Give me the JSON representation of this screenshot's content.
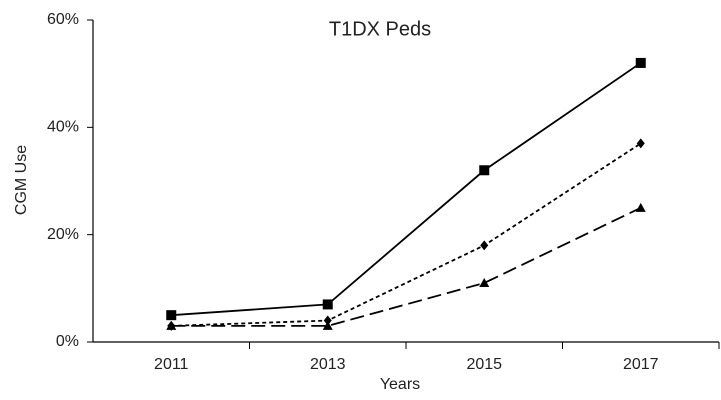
{
  "chart_data": {
    "type": "line",
    "title": "T1DX Peds",
    "xlabel": "Years",
    "ylabel": "CGM Use",
    "categories": [
      "2011",
      "2013",
      "2015",
      "2017"
    ],
    "series": [
      {
        "color": "#000000",
        "marker": "square",
        "dash": "solid",
        "values": [
          5,
          7,
          32,
          52
        ]
      },
      {
        "color": "#000000",
        "marker": "diamond",
        "dash": "short",
        "values": [
          3,
          4,
          18,
          37
        ]
      },
      {
        "color": "#000000",
        "marker": "triangle",
        "dash": "long",
        "values": [
          3,
          3,
          11,
          25
        ]
      }
    ],
    "ylim": [
      0,
      60
    ],
    "yticks": [
      {
        "value": 0,
        "label": "0%"
      },
      {
        "value": 20,
        "label": "20%"
      },
      {
        "value": 40,
        "label": "40%"
      },
      {
        "value": 60,
        "label": "60%"
      }
    ],
    "grid": false
  }
}
